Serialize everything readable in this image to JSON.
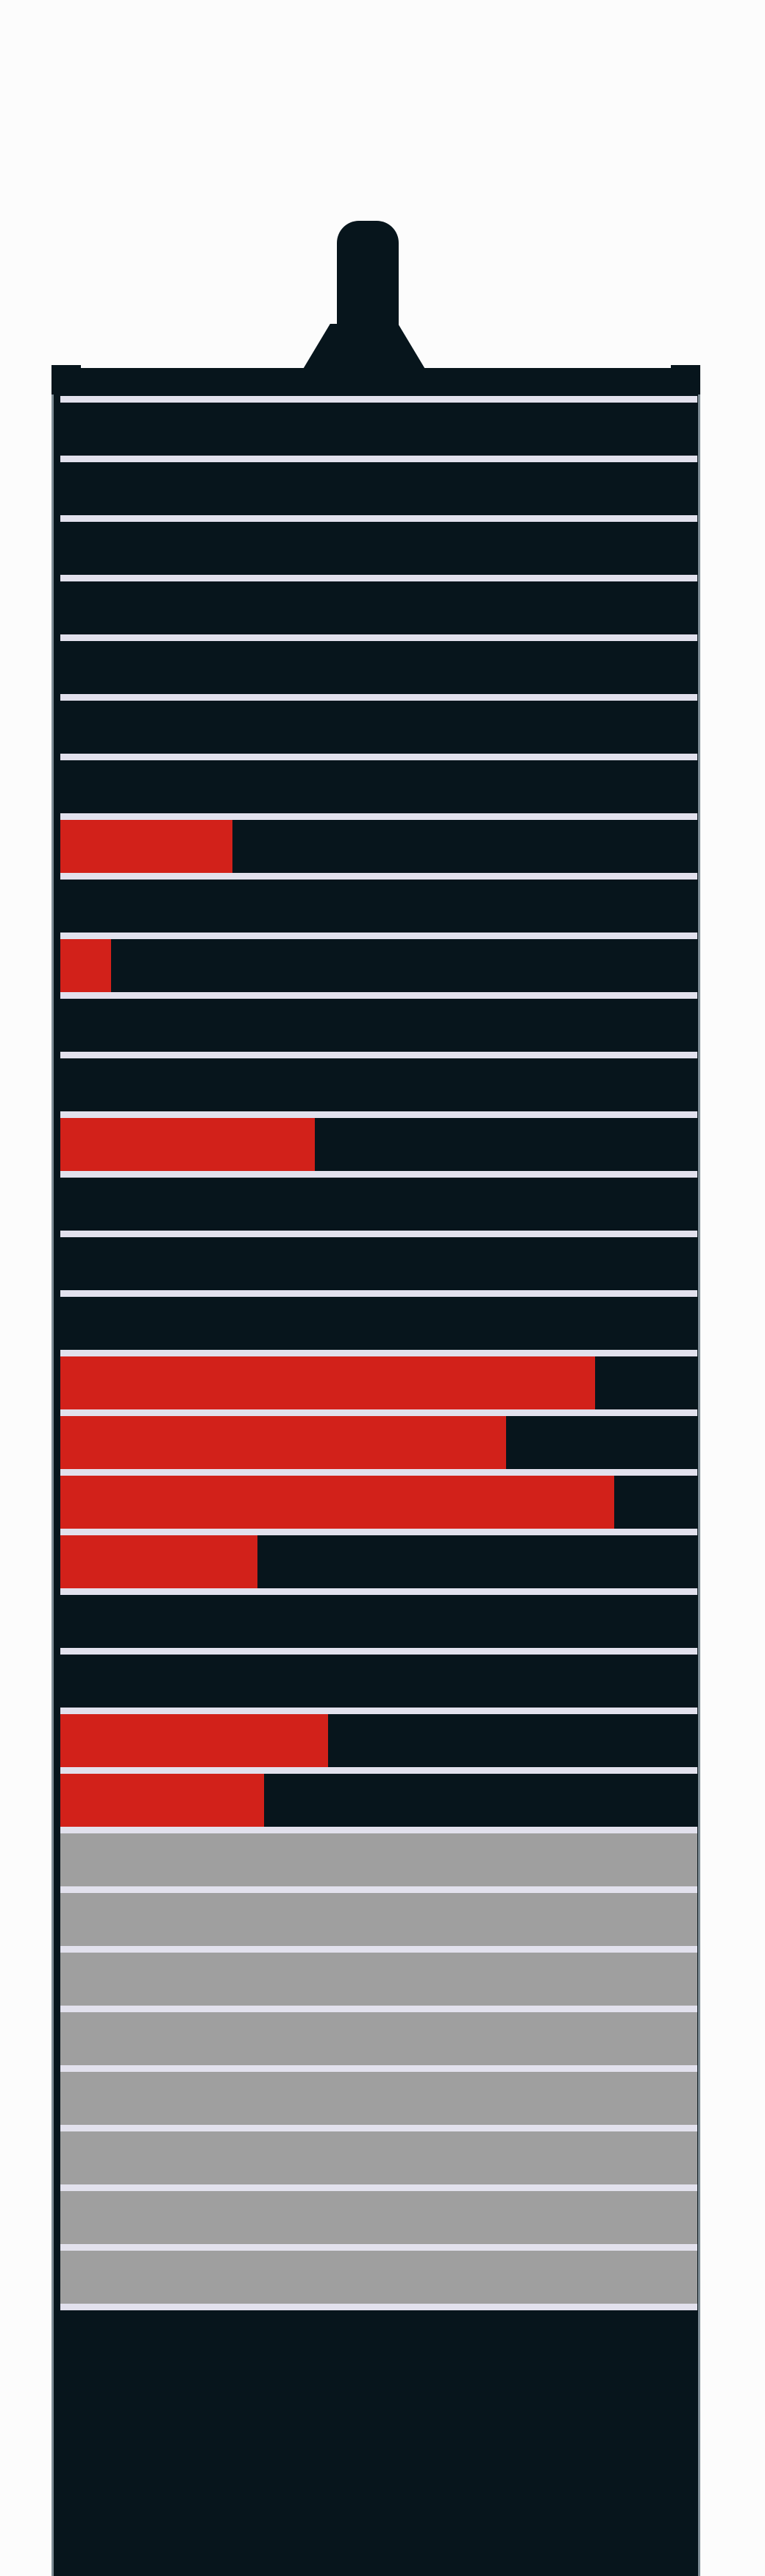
{
  "colors": {
    "background": "#fcfcfc",
    "tower": "#07151c",
    "outline": "#7e8c95",
    "divider": "#e2e1ed",
    "fill": "#d2211a",
    "empty": "#9f9f9f"
  },
  "rows": [
    {
      "fraction": 0,
      "state": "dark"
    },
    {
      "fraction": 0,
      "state": "dark"
    },
    {
      "fraction": 0,
      "state": "dark"
    },
    {
      "fraction": 0,
      "state": "dark"
    },
    {
      "fraction": 0,
      "state": "dark"
    },
    {
      "fraction": 0,
      "state": "dark"
    },
    {
      "fraction": 0,
      "state": "dark"
    },
    {
      "fraction": 0.27,
      "state": "dark"
    },
    {
      "fraction": 0,
      "state": "dark"
    },
    {
      "fraction": 0.08,
      "state": "dark"
    },
    {
      "fraction": 0,
      "state": "dark"
    },
    {
      "fraction": 0,
      "state": "dark"
    },
    {
      "fraction": 0.4,
      "state": "dark"
    },
    {
      "fraction": 0,
      "state": "dark"
    },
    {
      "fraction": 0,
      "state": "dark"
    },
    {
      "fraction": 0,
      "state": "dark"
    },
    {
      "fraction": 0.84,
      "state": "dark"
    },
    {
      "fraction": 0.7,
      "state": "dark"
    },
    {
      "fraction": 0.87,
      "state": "dark"
    },
    {
      "fraction": 0.31,
      "state": "dark"
    },
    {
      "fraction": 0,
      "state": "dark"
    },
    {
      "fraction": 0,
      "state": "dark"
    },
    {
      "fraction": 0.42,
      "state": "dark"
    },
    {
      "fraction": 0.32,
      "state": "dark"
    },
    {
      "fraction": 0,
      "state": "empty"
    },
    {
      "fraction": 0,
      "state": "empty"
    },
    {
      "fraction": 0,
      "state": "empty"
    },
    {
      "fraction": 0,
      "state": "empty"
    },
    {
      "fraction": 0,
      "state": "empty"
    },
    {
      "fraction": 0,
      "state": "empty"
    },
    {
      "fraction": 0,
      "state": "empty"
    },
    {
      "fraction": 0,
      "state": "empty"
    }
  ]
}
